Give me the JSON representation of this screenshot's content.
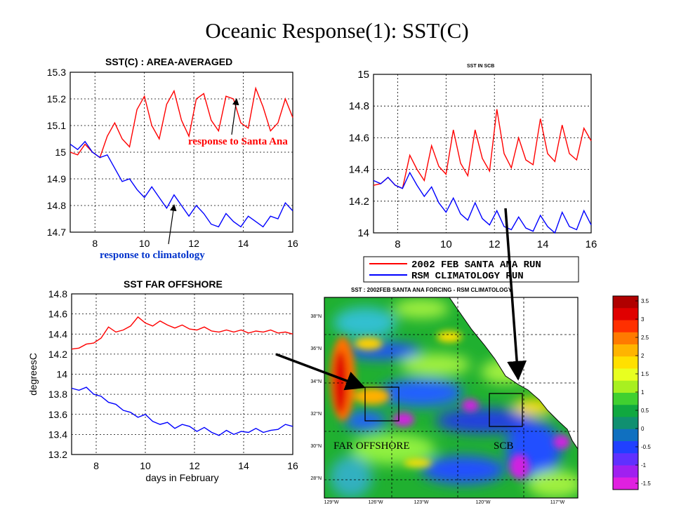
{
  "slide_title": "Oceanic Response(1): SST(C)",
  "colors": {
    "red_series": "#ff0000",
    "blue_series": "#0000ff",
    "annotation_red": "#ff0000",
    "annotation_blue": "#0033cc"
  },
  "annotations": {
    "santa_ana": "response to Santa Ana",
    "climatology": "response to climatology"
  },
  "legend": {
    "items": [
      {
        "label": "2002 FEB SANTA ANA RUN",
        "color": "#ff0000"
      },
      {
        "label": "RSM CLIMATOLOGY RUN",
        "color": "#0000ff"
      }
    ]
  },
  "chart_data": [
    {
      "type": "line",
      "title": "SST(C) : AREA-AVERAGED",
      "xlabel": "",
      "ylabel": "",
      "xlim": [
        7,
        16
      ],
      "ylim": [
        14.7,
        15.3
      ],
      "xticks": [
        8,
        10,
        12,
        14,
        16
      ],
      "yticks": [
        14.7,
        14.8,
        14.9,
        15,
        15.1,
        15.2,
        15.3
      ],
      "grid": true,
      "series": [
        {
          "color": "#ff0000",
          "x": [
            7.0,
            7.3,
            7.6,
            7.9,
            8.2,
            8.5,
            8.8,
            9.1,
            9.4,
            9.7,
            10.0,
            10.3,
            10.6,
            10.9,
            11.2,
            11.5,
            11.8,
            12.1,
            12.4,
            12.7,
            13.0,
            13.3,
            13.6,
            13.9,
            14.2,
            14.5,
            14.8,
            15.1,
            15.4,
            15.7,
            16.0
          ],
          "y": [
            15.0,
            14.99,
            15.03,
            15.0,
            14.98,
            15.06,
            15.11,
            15.05,
            15.02,
            15.16,
            15.21,
            15.1,
            15.05,
            15.18,
            15.23,
            15.12,
            15.06,
            15.2,
            15.22,
            15.12,
            15.08,
            15.21,
            15.2,
            15.11,
            15.09,
            15.24,
            15.17,
            15.08,
            15.11,
            15.2,
            15.13
          ]
        },
        {
          "color": "#0000ff",
          "x": [
            7.0,
            7.3,
            7.6,
            7.9,
            8.2,
            8.5,
            8.8,
            9.1,
            9.4,
            9.7,
            10.0,
            10.3,
            10.6,
            10.9,
            11.2,
            11.5,
            11.8,
            12.1,
            12.4,
            12.7,
            13.0,
            13.3,
            13.6,
            13.9,
            14.2,
            14.5,
            14.8,
            15.1,
            15.4,
            15.7,
            16.0
          ],
          "y": [
            15.03,
            15.01,
            15.04,
            15.0,
            14.98,
            14.99,
            14.94,
            14.89,
            14.9,
            14.86,
            14.83,
            14.87,
            14.83,
            14.79,
            14.84,
            14.8,
            14.76,
            14.8,
            14.77,
            14.73,
            14.72,
            14.77,
            14.74,
            14.72,
            14.76,
            14.74,
            14.72,
            14.76,
            14.75,
            14.81,
            14.78
          ]
        }
      ]
    },
    {
      "type": "line",
      "title": "SST IN SCB",
      "xlabel": "",
      "ylabel": "",
      "xlim": [
        7,
        16
      ],
      "ylim": [
        14,
        15
      ],
      "xticks": [
        8,
        10,
        12,
        14,
        16
      ],
      "yticks": [
        14,
        14.2,
        14.4,
        14.6,
        14.8,
        15
      ],
      "grid": true,
      "series": [
        {
          "color": "#ff0000",
          "x": [
            7.0,
            7.3,
            7.6,
            7.9,
            8.2,
            8.5,
            8.8,
            9.1,
            9.4,
            9.7,
            10.0,
            10.3,
            10.6,
            10.9,
            11.2,
            11.5,
            11.8,
            12.1,
            12.4,
            12.7,
            13.0,
            13.3,
            13.6,
            13.9,
            14.2,
            14.5,
            14.8,
            15.1,
            15.4,
            15.7,
            16.0
          ],
          "y": [
            14.3,
            14.31,
            14.35,
            14.3,
            14.28,
            14.49,
            14.4,
            14.33,
            14.55,
            14.42,
            14.37,
            14.65,
            14.44,
            14.36,
            14.65,
            14.47,
            14.39,
            14.78,
            14.5,
            14.41,
            14.6,
            14.46,
            14.43,
            14.72,
            14.5,
            14.45,
            14.68,
            14.5,
            14.46,
            14.66,
            14.58
          ]
        },
        {
          "color": "#0000ff",
          "x": [
            7.0,
            7.3,
            7.6,
            7.9,
            8.2,
            8.5,
            8.8,
            9.1,
            9.4,
            9.7,
            10.0,
            10.3,
            10.6,
            10.9,
            11.2,
            11.5,
            11.8,
            12.1,
            12.4,
            12.7,
            13.0,
            13.3,
            13.6,
            13.9,
            14.2,
            14.5,
            14.8,
            15.1,
            15.4,
            15.7,
            16.0
          ],
          "y": [
            14.33,
            14.31,
            14.35,
            14.3,
            14.28,
            14.38,
            14.3,
            14.23,
            14.29,
            14.19,
            14.13,
            14.22,
            14.12,
            14.08,
            14.19,
            14.09,
            14.05,
            14.14,
            14.04,
            14.02,
            14.1,
            14.03,
            14.01,
            14.11,
            14.04,
            14.0,
            14.13,
            14.04,
            14.02,
            14.14,
            14.05
          ]
        }
      ]
    },
    {
      "type": "line",
      "title": "SST FAR OFFSHORE",
      "xlabel": "days in February",
      "ylabel": "degreesC",
      "xlim": [
        7,
        16
      ],
      "ylim": [
        13.2,
        14.8
      ],
      "xticks": [
        8,
        10,
        12,
        14,
        16
      ],
      "yticks": [
        13.2,
        13.4,
        13.6,
        13.8,
        14,
        14.2,
        14.4,
        14.6,
        14.8
      ],
      "grid": true,
      "series": [
        {
          "color": "#ff0000",
          "x": [
            7.0,
            7.3,
            7.6,
            7.9,
            8.2,
            8.5,
            8.8,
            9.1,
            9.4,
            9.7,
            10.0,
            10.3,
            10.6,
            10.9,
            11.2,
            11.5,
            11.8,
            12.1,
            12.4,
            12.7,
            13.0,
            13.3,
            13.6,
            13.9,
            14.2,
            14.5,
            14.8,
            15.1,
            15.4,
            15.7,
            16.0
          ],
          "y": [
            14.25,
            14.26,
            14.3,
            14.31,
            14.36,
            14.47,
            14.42,
            14.44,
            14.48,
            14.57,
            14.51,
            14.48,
            14.53,
            14.49,
            14.46,
            14.49,
            14.45,
            14.44,
            14.47,
            14.43,
            14.42,
            14.44,
            14.42,
            14.44,
            14.41,
            14.43,
            14.42,
            14.44,
            14.41,
            14.42,
            14.4
          ]
        },
        {
          "color": "#0000ff",
          "x": [
            7.0,
            7.3,
            7.6,
            7.9,
            8.2,
            8.5,
            8.8,
            9.1,
            9.4,
            9.7,
            10.0,
            10.3,
            10.6,
            10.9,
            11.2,
            11.5,
            11.8,
            12.1,
            12.4,
            12.7,
            13.0,
            13.3,
            13.6,
            13.9,
            14.2,
            14.5,
            14.8,
            15.1,
            15.4,
            15.7,
            16.0
          ],
          "y": [
            13.86,
            13.84,
            13.87,
            13.8,
            13.78,
            13.72,
            13.7,
            13.64,
            13.62,
            13.57,
            13.6,
            13.53,
            13.5,
            13.52,
            13.46,
            13.5,
            13.48,
            13.43,
            13.47,
            13.42,
            13.39,
            13.44,
            13.4,
            13.43,
            13.42,
            13.46,
            13.42,
            13.44,
            13.45,
            13.5,
            13.48
          ]
        }
      ]
    }
  ],
  "map": {
    "title": "SST : 2002FEB SANTA ANA FORCING - RSM CLIMATOLOGY",
    "lat_labels": [
      "38°N",
      "36°N",
      "34°N",
      "32°N",
      "30°N",
      "28°N"
    ],
    "lon_labels": [
      "129°W",
      "126°W",
      "123°W",
      "120°W",
      "117°W"
    ],
    "box_labels": {
      "far_offshore": "FAR OFFSHORE",
      "scb": "SCB"
    },
    "colorbar": {
      "labels": [
        "3.5",
        "3",
        "2.5",
        "2",
        "1.5",
        "1",
        "0.5",
        "0",
        "-0.5",
        "-1",
        "-1.5"
      ],
      "colors": [
        "#b00000",
        "#e00000",
        "#ff3000",
        "#ff7a00",
        "#ffb400",
        "#ffe000",
        "#e8ff20",
        "#a8f020",
        "#40d030",
        "#10a840",
        "#109070",
        "#1070c0",
        "#2040ff",
        "#6030ff",
        "#a020f0",
        "#e020e0"
      ]
    }
  }
}
